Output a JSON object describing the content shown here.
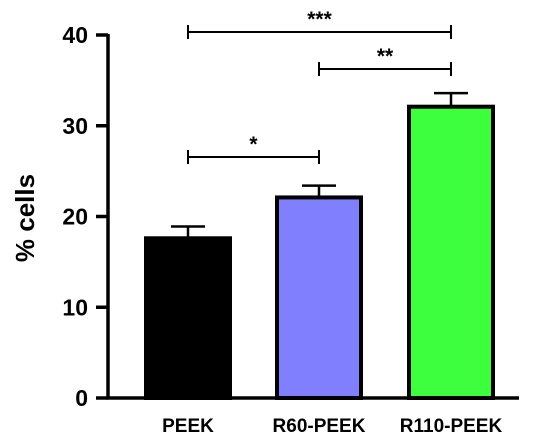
{
  "chart_data": {
    "type": "bar",
    "title": "",
    "xlabel": "",
    "ylabel": "% cells",
    "ylim": [
      0,
      40
    ],
    "yticks": [
      0,
      10,
      20,
      30,
      40
    ],
    "grid": false,
    "categories": [
      "PEEK",
      "R60-PEEK",
      "R110-PEEK"
    ],
    "values": [
      17.6,
      22.1,
      32.1
    ],
    "errors": [
      1.3,
      1.3,
      1.5
    ],
    "colors": [
      "#000000",
      "#8080ff",
      "#3dff3d"
    ],
    "significance": [
      {
        "from": "R60-PEEK",
        "to": "R110-PEEK",
        "label": "**"
      },
      {
        "from": "PEEK",
        "to": "R110-PEEK",
        "label": "***"
      },
      {
        "from": "PEEK",
        "to": "R60-PEEK",
        "label": "*"
      }
    ]
  }
}
